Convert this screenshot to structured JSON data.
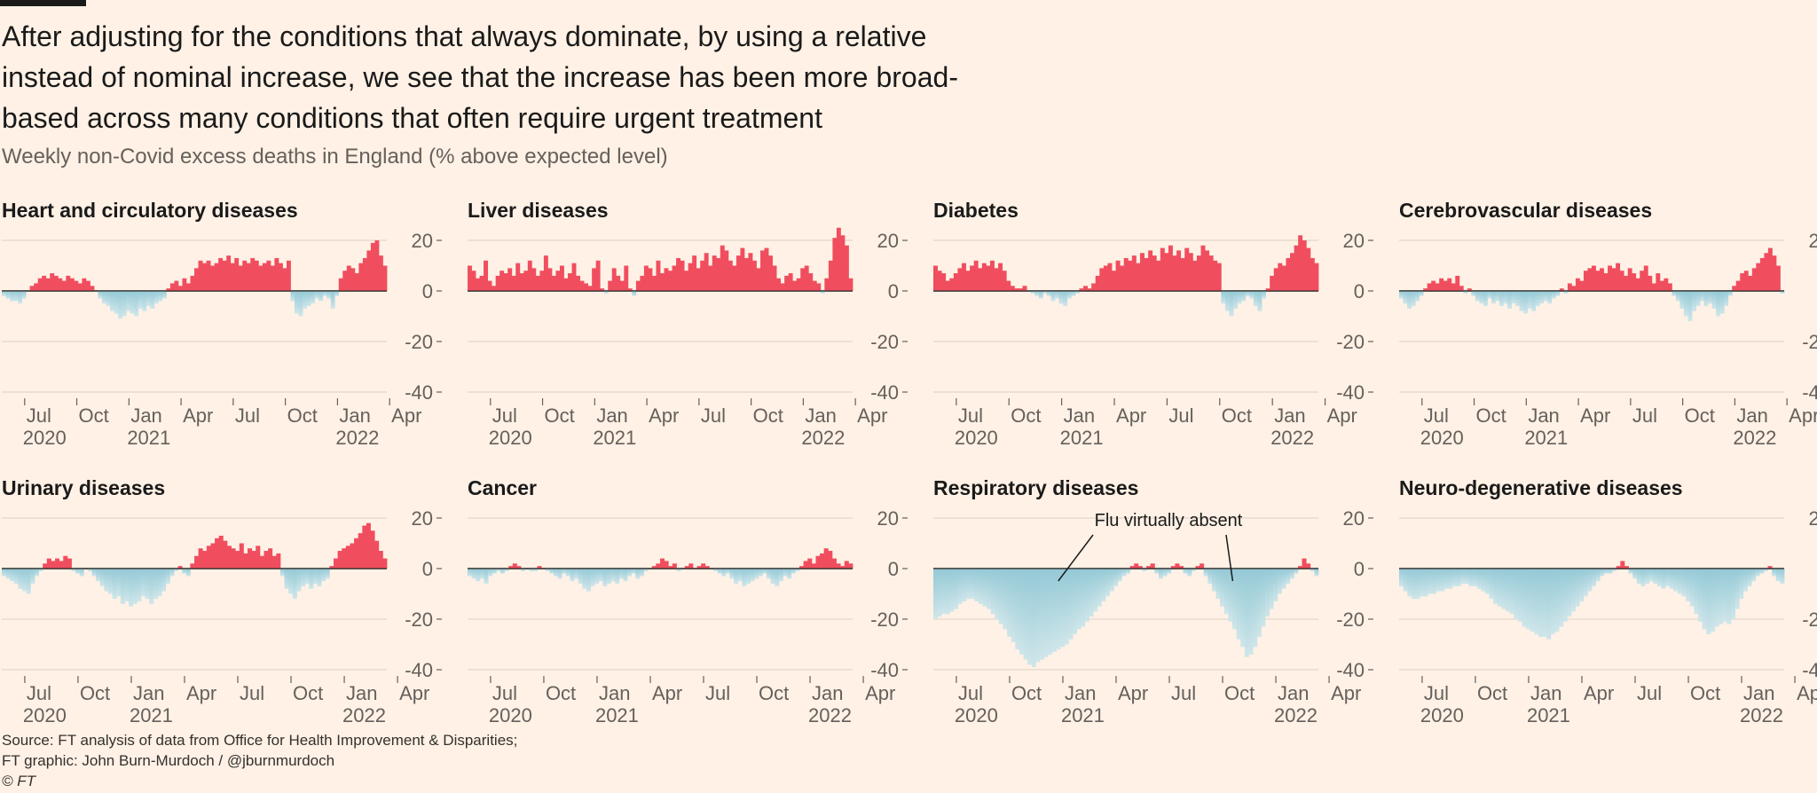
{
  "headline": "After adjusting for the conditions that always dominate, by using a relative instead of nominal increase, we see that the increase has been more broad-based across many conditions that often require urgent treatment",
  "subtitle": "Weekly non-Covid excess deaths in England (% above expected level)",
  "footer": {
    "source": "Source: FT analysis of data from Office for Health Improvement & Disparities;",
    "credit": "FT graphic: John Burn-Murdoch / @jburnmurdoch",
    "copyright": "© FT"
  },
  "colors": {
    "background": "#fff1e5",
    "positive": "#f04e5f",
    "negative_light": "#cfe6ea",
    "negative_dark": "#94c9d6",
    "grid": "#e3d6ca",
    "text": "#1a1a1a",
    "muted": "#66605c"
  },
  "axis": {
    "y_ticks": [
      20,
      0,
      -20,
      -40
    ],
    "x_ticks": [
      {
        "label": "Jul",
        "year": "2020",
        "week": 1
      },
      {
        "label": "Oct",
        "year": "",
        "week": 14
      },
      {
        "label": "Jan",
        "year": "2021",
        "week": 27
      },
      {
        "label": "Apr",
        "year": "",
        "week": 40
      },
      {
        "label": "Jul",
        "year": "",
        "week": 53
      },
      {
        "label": "Oct",
        "year": "",
        "week": 66
      },
      {
        "label": "Jan",
        "year": "2022",
        "week": 79
      },
      {
        "label": "Apr",
        "year": "",
        "week": 92
      }
    ]
  },
  "chart_data": [
    {
      "type": "bar",
      "title": "Heart and circulatory diseases",
      "ylim": [
        -40,
        25
      ],
      "values": [
        -2,
        -3,
        -4,
        -4,
        -5,
        -3,
        0,
        2,
        3,
        5,
        6,
        5,
        7,
        6,
        5,
        4,
        6,
        5,
        4,
        3,
        5,
        4,
        2,
        0,
        -3,
        -5,
        -6,
        -8,
        -9,
        -11,
        -10,
        -8,
        -9,
        -10,
        -7,
        -8,
        -6,
        -7,
        -5,
        -4,
        -3,
        1,
        3,
        4,
        2,
        5,
        3,
        6,
        9,
        12,
        11,
        12,
        10,
        11,
        13,
        12,
        14,
        11,
        13,
        10,
        12,
        11,
        13,
        12,
        10,
        11,
        12,
        10,
        13,
        11,
        9,
        12,
        -4,
        -9,
        -10,
        -7,
        -6,
        -5,
        -3,
        -4,
        -2,
        -3,
        -7,
        -2,
        5,
        8,
        10,
        9,
        7,
        11,
        13,
        16,
        19,
        20,
        14,
        10
      ]
    },
    {
      "type": "bar",
      "title": "Liver diseases",
      "ylim": [
        -40,
        25
      ],
      "values": [
        10,
        8,
        5,
        6,
        12,
        4,
        2,
        6,
        8,
        7,
        9,
        6,
        11,
        7,
        8,
        12,
        9,
        6,
        8,
        14,
        9,
        6,
        8,
        10,
        5,
        7,
        11,
        6,
        4,
        3,
        2,
        9,
        12,
        1,
        -1,
        4,
        9,
        6,
        4,
        10,
        1,
        -2,
        4,
        6,
        10,
        9,
        6,
        12,
        7,
        9,
        8,
        10,
        13,
        12,
        8,
        11,
        14,
        9,
        12,
        15,
        10,
        14,
        13,
        18,
        16,
        12,
        10,
        14,
        17,
        13,
        15,
        12,
        9,
        16,
        17,
        14,
        10,
        5,
        3,
        6,
        7,
        4,
        5,
        9,
        10,
        7,
        4,
        3,
        -1,
        5,
        12,
        21,
        25,
        22,
        18,
        5
      ]
    },
    {
      "type": "bar",
      "title": "Diabetes",
      "ylim": [
        -40,
        25
      ],
      "values": [
        10,
        8,
        7,
        4,
        5,
        7,
        9,
        11,
        8,
        10,
        12,
        9,
        11,
        10,
        12,
        9,
        11,
        8,
        4,
        2,
        1,
        1,
        2,
        0,
        -1,
        -2,
        -3,
        -1,
        -2,
        -4,
        -3,
        -5,
        -6,
        -3,
        -2,
        -1,
        1,
        2,
        1,
        3,
        6,
        9,
        10,
        11,
        8,
        12,
        10,
        13,
        12,
        14,
        11,
        15,
        13,
        16,
        14,
        12,
        17,
        15,
        18,
        14,
        16,
        13,
        17,
        15,
        12,
        14,
        18,
        16,
        14,
        12,
        11,
        -5,
        -8,
        -10,
        -7,
        -5,
        -4,
        -2,
        -3,
        -6,
        -8,
        -3,
        1,
        6,
        9,
        11,
        10,
        13,
        15,
        18,
        22,
        20,
        17,
        13,
        11
      ]
    },
    {
      "type": "bar",
      "title": "Cerebrovascular diseases",
      "ylim": [
        -40,
        25
      ],
      "values": [
        -3,
        -5,
        -7,
        -6,
        -4,
        -2,
        1,
        3,
        4,
        3,
        5,
        4,
        5,
        3,
        6,
        2,
        -1,
        1,
        -2,
        -4,
        -5,
        -6,
        -3,
        -5,
        -4,
        -6,
        -5,
        -7,
        -5,
        -6,
        -8,
        -9,
        -7,
        -8,
        -6,
        -5,
        -4,
        -5,
        -3,
        -2,
        1,
        -1,
        3,
        2,
        5,
        4,
        8,
        9,
        10,
        8,
        9,
        7,
        10,
        9,
        11,
        8,
        6,
        9,
        7,
        5,
        8,
        10,
        6,
        3,
        7,
        4,
        5,
        3,
        -2,
        -4,
        -7,
        -10,
        -12,
        -8,
        -6,
        -4,
        -6,
        -5,
        -7,
        -10,
        -9,
        -6,
        -2,
        2,
        4,
        7,
        8,
        6,
        9,
        11,
        13,
        15,
        17,
        14,
        10,
        -1
      ]
    },
    {
      "type": "bar",
      "title": "Urinary diseases",
      "ylim": [
        -40,
        25
      ],
      "values": [
        -3,
        -4,
        -5,
        -6,
        -8,
        -9,
        -10,
        -6,
        -3,
        -1,
        2,
        4,
        3,
        4,
        3,
        5,
        4,
        -1,
        -2,
        -3,
        0,
        -1,
        -3,
        -5,
        -7,
        -9,
        -10,
        -12,
        -11,
        -14,
        -13,
        -15,
        -14,
        -13,
        -11,
        -12,
        -14,
        -12,
        -11,
        -9,
        -6,
        -3,
        -1,
        1,
        -2,
        -3,
        2,
        5,
        8,
        7,
        9,
        10,
        12,
        13,
        11,
        9,
        8,
        7,
        10,
        6,
        8,
        7,
        9,
        5,
        7,
        8,
        5,
        6,
        -3,
        -8,
        -10,
        -12,
        -9,
        -7,
        -6,
        -8,
        -6,
        -7,
        -5,
        -4,
        1,
        4,
        7,
        8,
        9,
        10,
        12,
        14,
        17,
        18,
        15,
        11,
        7,
        4
      ]
    },
    {
      "type": "bar",
      "title": "Cancer",
      "ylim": [
        -40,
        25
      ],
      "values": [
        -3,
        -4,
        -5,
        -4,
        -6,
        -3,
        -2,
        -1,
        -2,
        -1,
        1,
        2,
        1,
        -1,
        0,
        -1,
        -1,
        1,
        0,
        -1,
        -2,
        -3,
        -4,
        -2,
        -3,
        -5,
        -4,
        -6,
        -8,
        -9,
        -7,
        -6,
        -5,
        -7,
        -6,
        -5,
        -6,
        -4,
        -5,
        -3,
        -2,
        -4,
        -3,
        -1,
        0,
        1,
        2,
        4,
        3,
        1,
        2,
        -1,
        0,
        1,
        2,
        0,
        1,
        2,
        1,
        0,
        -1,
        -2,
        -3,
        -2,
        -4,
        -6,
        -5,
        -7,
        -6,
        -5,
        -4,
        -3,
        -2,
        -4,
        -6,
        -7,
        -5,
        -3,
        -4,
        -2,
        -1,
        1,
        3,
        4,
        2,
        5,
        6,
        8,
        7,
        4,
        2,
        1,
        3,
        2
      ]
    },
    {
      "type": "bar",
      "title": "Respiratory diseases",
      "ylim": [
        -40,
        25
      ],
      "values": [
        -20,
        -19,
        -18,
        -18,
        -17,
        -16,
        -14,
        -13,
        -12,
        -12,
        -13,
        -14,
        -15,
        -16,
        -18,
        -20,
        -22,
        -24,
        -27,
        -29,
        -32,
        -34,
        -36,
        -38,
        -39,
        -37,
        -36,
        -35,
        -34,
        -33,
        -32,
        -31,
        -30,
        -28,
        -26,
        -24,
        -23,
        -21,
        -19,
        -17,
        -15,
        -13,
        -11,
        -9,
        -7,
        -5,
        -3,
        -2,
        1,
        2,
        1,
        -1,
        1,
        2,
        -2,
        -4,
        -3,
        -2,
        1,
        2,
        1,
        -2,
        -3,
        -1,
        1,
        2,
        -3,
        -6,
        -9,
        -12,
        -15,
        -18,
        -21,
        -24,
        -28,
        -31,
        -35,
        -34,
        -31,
        -27,
        -23,
        -19,
        -16,
        -13,
        -10,
        -8,
        -6,
        -4,
        -2,
        1,
        4,
        2,
        -1,
        -3
      ]
    },
    {
      "type": "bar",
      "title": "Neuro-degenerative diseases",
      "ylim": [
        -40,
        25
      ],
      "values": [
        -7,
        -9,
        -11,
        -12,
        -12,
        -11,
        -11,
        -10,
        -10,
        -9,
        -9,
        -8,
        -8,
        -7,
        -7,
        -6,
        -6,
        -7,
        -7,
        -8,
        -9,
        -10,
        -12,
        -14,
        -15,
        -16,
        -17,
        -18,
        -20,
        -21,
        -23,
        -24,
        -25,
        -26,
        -27,
        -27,
        -28,
        -26,
        -25,
        -23,
        -21,
        -19,
        -17,
        -15,
        -13,
        -11,
        -9,
        -7,
        -5,
        -3,
        -2,
        -2,
        -1,
        1,
        3,
        1,
        -2,
        -4,
        -6,
        -7,
        -6,
        -5,
        -6,
        -7,
        -8,
        -7,
        -8,
        -9,
        -10,
        -11,
        -13,
        -15,
        -18,
        -21,
        -24,
        -26,
        -25,
        -23,
        -22,
        -21,
        -22,
        -20,
        -16,
        -12,
        -9,
        -7,
        -5,
        -3,
        -2,
        -1,
        1,
        -3,
        -5,
        -6
      ]
    }
  ],
  "annotation": {
    "text": "Flu virtually absent",
    "panel": 6,
    "pointer_weeks": [
      24,
      72
    ]
  }
}
